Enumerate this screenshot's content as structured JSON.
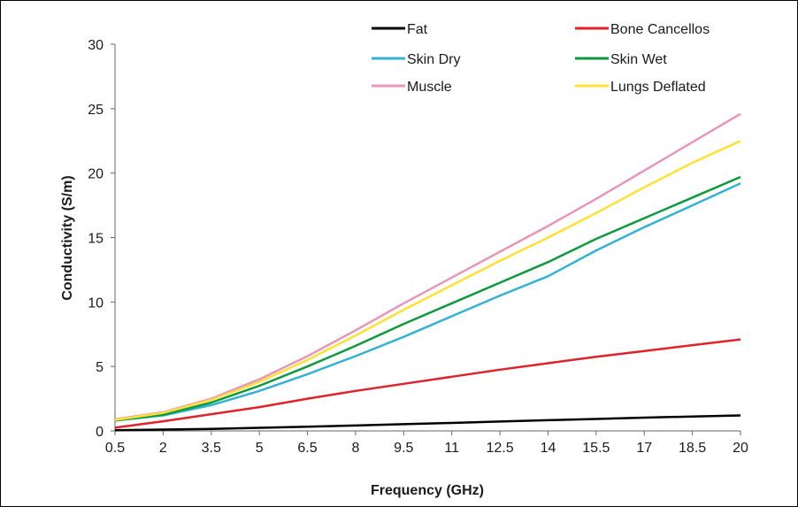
{
  "chart_data": {
    "type": "line",
    "xlabel": "Frequency (GHz)",
    "ylabel": "Conductivity (S/m)",
    "xlim": [
      0.5,
      20
    ],
    "ylim": [
      0,
      30
    ],
    "x_ticks": [
      "0.5",
      "2",
      "3.5",
      "5",
      "6.5",
      "8",
      "9.5",
      "11",
      "12.5",
      "14",
      "15.5",
      "17",
      "18.5",
      "20"
    ],
    "y_ticks": [
      "0",
      "5",
      "10",
      "15",
      "20",
      "25",
      "30"
    ],
    "grid": false,
    "legend_position": "top-right",
    "x": [
      0.5,
      2,
      3.5,
      5,
      6.5,
      8,
      9.5,
      11,
      12.5,
      14,
      15.5,
      17,
      18.5,
      20
    ],
    "series": [
      {
        "name": "Fat",
        "color": "#000000",
        "values": [
          0.05,
          0.1,
          0.16,
          0.24,
          0.33,
          0.42,
          0.52,
          0.62,
          0.73,
          0.83,
          0.93,
          1.03,
          1.12,
          1.2
        ]
      },
      {
        "name": "Bone Cancellos",
        "color": "#e0222b",
        "values": [
          0.25,
          0.75,
          1.3,
          1.85,
          2.5,
          3.1,
          3.65,
          4.2,
          4.75,
          5.25,
          5.75,
          6.2,
          6.65,
          7.1
        ]
      },
      {
        "name": "Skin Dry",
        "color": "#33b2d6",
        "values": [
          0.8,
          1.2,
          2.0,
          3.1,
          4.4,
          5.8,
          7.3,
          8.9,
          10.5,
          12.0,
          14.0,
          15.8,
          17.5,
          19.2
        ]
      },
      {
        "name": "Skin Wet",
        "color": "#0d9a3e",
        "values": [
          0.8,
          1.25,
          2.2,
          3.5,
          5.0,
          6.6,
          8.3,
          9.9,
          11.5,
          13.1,
          14.9,
          16.5,
          18.1,
          19.7
        ]
      },
      {
        "name": "Muscle",
        "color": "#e895b8",
        "values": [
          0.9,
          1.45,
          2.5,
          4.0,
          5.8,
          7.8,
          9.9,
          11.9,
          13.9,
          15.9,
          18.0,
          20.2,
          22.4,
          24.6
        ]
      },
      {
        "name": "Lungs Deflated",
        "color": "#ffe033",
        "values": [
          0.85,
          1.4,
          2.4,
          3.8,
          5.5,
          7.4,
          9.4,
          11.3,
          13.2,
          15.0,
          16.9,
          18.9,
          20.8,
          22.5
        ]
      }
    ]
  }
}
